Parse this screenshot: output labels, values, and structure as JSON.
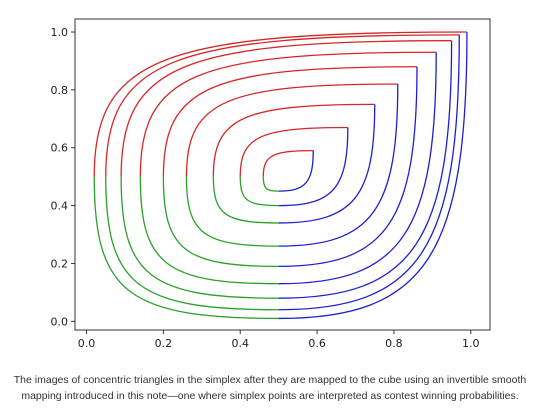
{
  "chart_data": {
    "type": "line",
    "title": "",
    "xlabel": "",
    "ylabel": "",
    "xlim": [
      -0.03,
      1.05
    ],
    "ylim": [
      -0.03,
      1.045
    ],
    "xticks": [
      "0.0",
      "0.2",
      "0.4",
      "0.6",
      "0.8",
      "1.0"
    ],
    "yticks": [
      "0.0",
      "0.2",
      "0.4",
      "0.6",
      "0.8",
      "1.0"
    ],
    "grid": false,
    "legend": "none",
    "colors": {
      "red": "#d62728",
      "green": "#2ca02c",
      "blue": "#1f1fd0"
    },
    "curves": [
      {
        "apex": [
          0.02,
          0.5
        ],
        "top": [
          0.99,
          1.0
        ],
        "bottom": [
          0.5,
          0.01
        ]
      },
      {
        "apex": [
          0.05,
          0.5
        ],
        "top": [
          0.97,
          0.99
        ],
        "bottom": [
          0.5,
          0.04
        ]
      },
      {
        "apex": [
          0.09,
          0.5
        ],
        "top": [
          0.95,
          0.97
        ],
        "bottom": [
          0.5,
          0.08
        ]
      },
      {
        "apex": [
          0.14,
          0.5
        ],
        "top": [
          0.91,
          0.93
        ],
        "bottom": [
          0.5,
          0.13
        ]
      },
      {
        "apex": [
          0.2,
          0.5
        ],
        "top": [
          0.86,
          0.88
        ],
        "bottom": [
          0.5,
          0.19
        ]
      },
      {
        "apex": [
          0.26,
          0.5
        ],
        "top": [
          0.81,
          0.82
        ],
        "bottom": [
          0.5,
          0.26
        ]
      },
      {
        "apex": [
          0.33,
          0.5
        ],
        "top": [
          0.75,
          0.75
        ],
        "bottom": [
          0.5,
          0.34
        ]
      },
      {
        "apex": [
          0.4,
          0.5
        ],
        "top": [
          0.68,
          0.67
        ],
        "bottom": [
          0.5,
          0.4
        ]
      },
      {
        "apex": [
          0.46,
          0.5
        ],
        "top": [
          0.59,
          0.59
        ],
        "bottom": [
          0.5,
          0.45
        ]
      }
    ]
  },
  "caption": {
    "line1": "The images of concentric triangles in the simplex after they are mapped to the cube using an invertible smooth",
    "line2": "mapping introduced in this note—one where simplex points are interpreted as contest winning probabilities."
  }
}
